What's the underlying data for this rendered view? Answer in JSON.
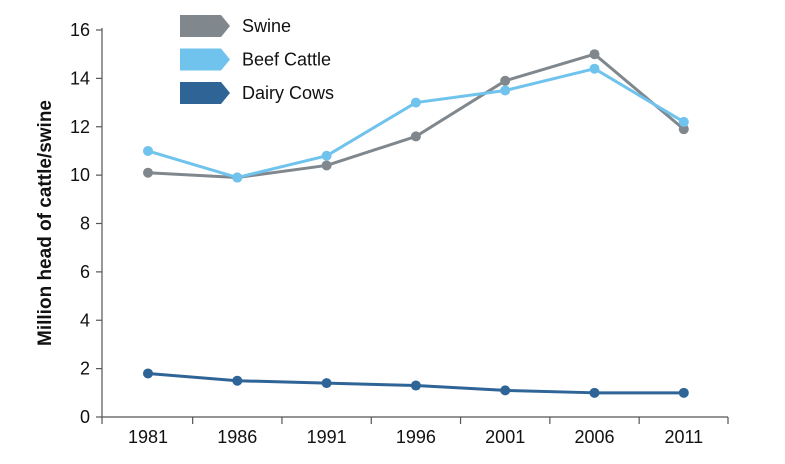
{
  "chart_data": {
    "type": "line",
    "title": "",
    "xlabel": "",
    "ylabel": "Million head of cattle/swine",
    "categories": [
      "1981",
      "1986",
      "1991",
      "1996",
      "2001",
      "2006",
      "2011"
    ],
    "ylim": [
      0,
      16
    ],
    "yticks": [
      0,
      2,
      4,
      6,
      8,
      10,
      12,
      14,
      16
    ],
    "grid": false,
    "legend_position": "top-left",
    "series": [
      {
        "name": "Swine",
        "color": "#80878d",
        "values": [
          10.1,
          9.9,
          10.4,
          11.6,
          13.9,
          15.0,
          11.9
        ]
      },
      {
        "name": "Beef Cattle",
        "color": "#6fc3ec",
        "values": [
          11.0,
          9.9,
          10.8,
          13.0,
          13.5,
          14.4,
          12.2
        ]
      },
      {
        "name": "Dairy Cows",
        "color": "#2e6496",
        "values": [
          1.8,
          1.5,
          1.4,
          1.3,
          1.1,
          1.0,
          1.0
        ]
      }
    ]
  }
}
